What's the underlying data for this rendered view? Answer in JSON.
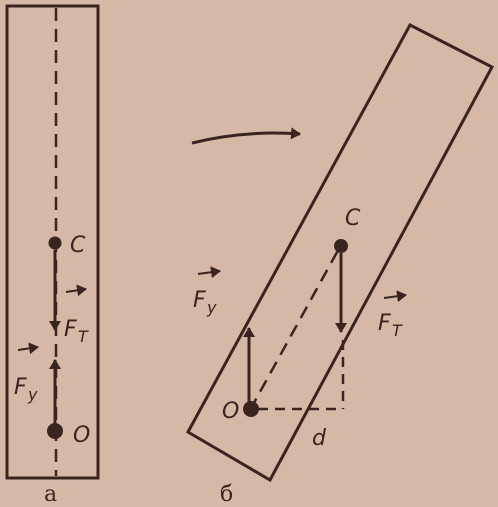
{
  "panel_a": {
    "caption": "а",
    "labels": {
      "center": "C",
      "force_gravity": "F",
      "force_gravity_sub": "T",
      "force_support": "F",
      "force_support_sub": "y",
      "pivot": "O"
    }
  },
  "panel_b": {
    "caption": "б",
    "labels": {
      "center": "C",
      "force_gravity": "F",
      "force_gravity_sub": "T",
      "force_support": "F",
      "force_support_sub": "y",
      "pivot": "O",
      "arm": "d"
    }
  },
  "colors": {
    "background": "#d6b8a6",
    "ink": "#3a2420"
  }
}
